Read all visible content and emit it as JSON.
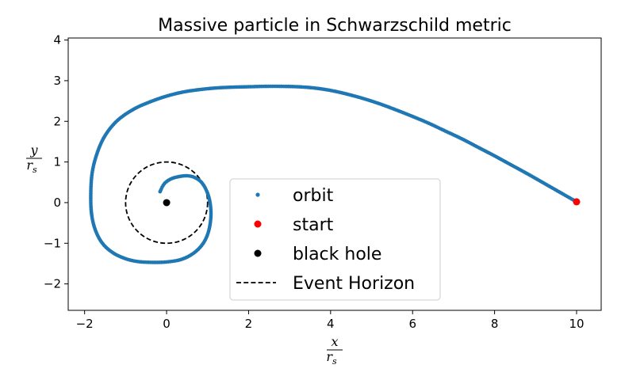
{
  "chart_data": {
    "type": "scatter",
    "title": "Massive particle in Schwarzschild metric",
    "xlabel": {
      "numerator": "x",
      "denominator": "r",
      "subscript": "s"
    },
    "ylabel": {
      "numerator": "y",
      "denominator": "r",
      "subscript": "s"
    },
    "xlim": [
      -2.4,
      10.6
    ],
    "ylim": [
      -2.65,
      4.05
    ],
    "xticks": [
      -2,
      0,
      2,
      4,
      6,
      8,
      10
    ],
    "yticks": [
      -2,
      -1,
      0,
      1,
      2,
      3,
      4
    ],
    "xtick_labels": [
      "−2",
      "0",
      "2",
      "4",
      "6",
      "8",
      "10"
    ],
    "ytick_labels": [
      "−2",
      "−1",
      "0",
      "1",
      "2",
      "3",
      "4"
    ],
    "grid": false,
    "legend_position": "lower-center",
    "colors": {
      "orbit": "#1f77b4",
      "start": "#ff0000",
      "black_hole": "#000000",
      "event_horizon": "#000000"
    },
    "series": [
      {
        "name": "orbit",
        "kind": "points",
        "x": [
          10.0,
          9.6,
          9.2,
          8.8,
          8.4,
          8.0,
          7.6,
          7.2,
          6.8,
          6.4,
          6.0,
          5.6,
          5.2,
          4.8,
          4.4,
          4.0,
          3.6,
          3.2,
          2.8,
          2.4,
          2.0,
          1.6,
          1.2,
          0.8,
          0.4,
          0.0,
          -0.4,
          -0.8,
          -1.2,
          -1.5,
          -1.7,
          -1.82,
          -1.85,
          -1.82,
          -1.72,
          -1.55,
          -1.3,
          -1.0,
          -0.7,
          -0.35,
          0.0,
          0.35,
          0.65,
          0.88,
          1.02,
          1.08,
          1.06,
          0.98,
          0.85,
          0.68,
          0.5,
          0.3,
          0.1,
          -0.06,
          -0.16
        ],
        "y": [
          0.02,
          0.25,
          0.48,
          0.71,
          0.93,
          1.15,
          1.36,
          1.57,
          1.76,
          1.95,
          2.12,
          2.28,
          2.43,
          2.56,
          2.67,
          2.76,
          2.82,
          2.85,
          2.86,
          2.86,
          2.85,
          2.84,
          2.82,
          2.78,
          2.72,
          2.62,
          2.48,
          2.3,
          2.02,
          1.65,
          1.2,
          0.7,
          0.1,
          -0.35,
          -0.72,
          -1.02,
          -1.24,
          -1.38,
          -1.45,
          -1.47,
          -1.46,
          -1.4,
          -1.25,
          -1.02,
          -0.72,
          -0.35,
          0.0,
          0.28,
          0.5,
          0.62,
          0.66,
          0.64,
          0.58,
          0.46,
          0.27
        ]
      },
      {
        "name": "start",
        "kind": "points",
        "x": [
          10.0
        ],
        "y": [
          0.02
        ]
      },
      {
        "name": "black hole",
        "kind": "points",
        "x": [
          0.0
        ],
        "y": [
          0.0
        ]
      },
      {
        "name": "Event Horizon",
        "kind": "circle",
        "center": [
          0,
          0
        ],
        "radius": 1
      }
    ]
  }
}
